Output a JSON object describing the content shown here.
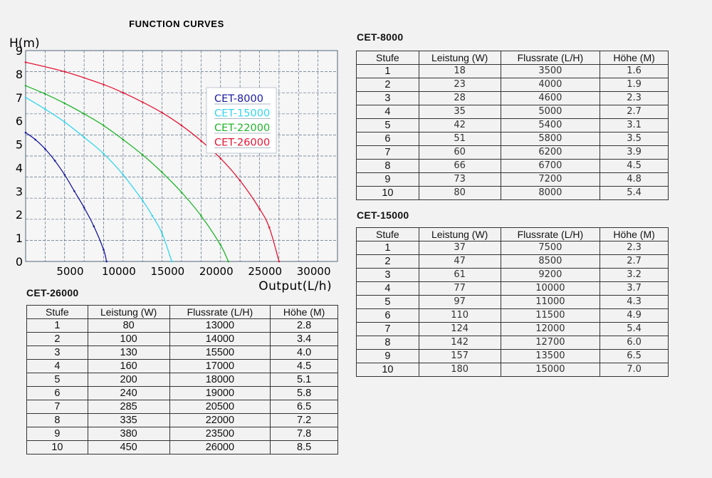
{
  "chart_data": {
    "type": "line",
    "title": "FUNCTION CURVES",
    "ylabel": "H(m)",
    "xlabel": "Output(L/h)",
    "xlim": [
      0,
      32000
    ],
    "ylim": [
      0,
      9
    ],
    "x_ticks": [
      5000,
      10000,
      15000,
      20000,
      25000,
      30000
    ],
    "x_tick_labels": [
      "5000",
      "10000",
      "15000",
      "20000",
      "25000",
      "30000"
    ],
    "y_ticks": [
      0,
      1,
      2,
      3,
      4,
      5,
      6,
      7,
      8,
      9
    ],
    "y_tick_labels": [
      "0",
      "1",
      "2",
      "3",
      "4",
      "5",
      "6",
      "7",
      "8",
      "9"
    ],
    "grid": true,
    "legend_position": "upper-middle",
    "series": [
      {
        "name": "CET-8000",
        "color": "#1a1aa0",
        "x": [
          0,
          1000,
          2000,
          3000,
          4000,
          5000,
          6000,
          7000,
          8000,
          8300
        ],
        "y": [
          5.5,
          5.2,
          4.8,
          4.3,
          3.7,
          3.0,
          2.3,
          1.5,
          0.5,
          0
        ]
      },
      {
        "name": "CET-15000",
        "color": "#33d6ee",
        "x": [
          0,
          2000,
          4000,
          6000,
          8000,
          10000,
          12000,
          13000,
          14000,
          15000
        ],
        "y": [
          7.0,
          6.5,
          5.95,
          5.3,
          4.6,
          3.7,
          2.6,
          1.95,
          1.2,
          0
        ]
      },
      {
        "name": "CET-22000",
        "color": "#1fb52a",
        "x": [
          0,
          2000,
          4000,
          6000,
          8000,
          10000,
          12000,
          14000,
          16000,
          18000,
          20000,
          20800
        ],
        "y": [
          7.5,
          7.15,
          6.75,
          6.3,
          5.8,
          5.2,
          4.55,
          3.8,
          2.95,
          1.95,
          0.7,
          0
        ]
      },
      {
        "name": "CET-26000",
        "color": "#e41535",
        "x": [
          0,
          4000,
          8000,
          10000,
          12000,
          14000,
          16000,
          18000,
          20000,
          22000,
          24000,
          25000,
          26000
        ],
        "y": [
          8.5,
          8.1,
          7.55,
          7.2,
          6.8,
          6.35,
          5.8,
          5.15,
          4.4,
          3.45,
          2.25,
          1.45,
          0
        ]
      }
    ]
  },
  "tables": [
    {
      "title": "CET-8000",
      "headers": [
        "Stufe",
        "Leistung (W)",
        "Flussrate (L/H)",
        "Höhe (M)"
      ],
      "rows": [
        [
          "1",
          "18",
          "3500",
          "1.6"
        ],
        [
          "2",
          "23",
          "4000",
          "1.9"
        ],
        [
          "3",
          "28",
          "4600",
          "2.3"
        ],
        [
          "4",
          "35",
          "5000",
          "2.7"
        ],
        [
          "5",
          "42",
          "5400",
          "3.1"
        ],
        [
          "6",
          "51",
          "5800",
          "3.5"
        ],
        [
          "7",
          "60",
          "6200",
          "3.9"
        ],
        [
          "8",
          "66",
          "6700",
          "4.5"
        ],
        [
          "9",
          "73",
          "7200",
          "4.8"
        ],
        [
          "10",
          "80",
          "8000",
          "5.4"
        ]
      ]
    },
    {
      "title": "CET-15000",
      "headers": [
        "Stufe",
        "Leistung (W)",
        "Flussrate (L/H)",
        "Höhe (M)"
      ],
      "rows": [
        [
          "1",
          "37",
          "7500",
          "2.3"
        ],
        [
          "2",
          "47",
          "8500",
          "2.7"
        ],
        [
          "3",
          "61",
          "9200",
          "3.2"
        ],
        [
          "4",
          "77",
          "10000",
          "3.7"
        ],
        [
          "5",
          "97",
          "11000",
          "4.3"
        ],
        [
          "6",
          "110",
          "11500",
          "4.9"
        ],
        [
          "7",
          "124",
          "12000",
          "5.4"
        ],
        [
          "8",
          "142",
          "12700",
          "6.0"
        ],
        [
          "9",
          "157",
          "13500",
          "6.5"
        ],
        [
          "10",
          "180",
          "15000",
          "7.0"
        ]
      ]
    },
    {
      "title": "CET-26000",
      "headers": [
        "Stufe",
        "Leistung (W)",
        "Flussrate (L/H)",
        "Höhe (M)"
      ],
      "rows": [
        [
          "1",
          "80",
          "13000",
          "2.8"
        ],
        [
          "2",
          "100",
          "14000",
          "3.4"
        ],
        [
          "3",
          "130",
          "15500",
          "4.0"
        ],
        [
          "4",
          "160",
          "17000",
          "4.5"
        ],
        [
          "5",
          "200",
          "18000",
          "5.1"
        ],
        [
          "6",
          "240",
          "19000",
          "5.8"
        ],
        [
          "7",
          "285",
          "20500",
          "6.5"
        ],
        [
          "8",
          "335",
          "22000",
          "7.2"
        ],
        [
          "9",
          "380",
          "23500",
          "7.8"
        ],
        [
          "10",
          "450",
          "26000",
          "8.5"
        ]
      ]
    }
  ]
}
